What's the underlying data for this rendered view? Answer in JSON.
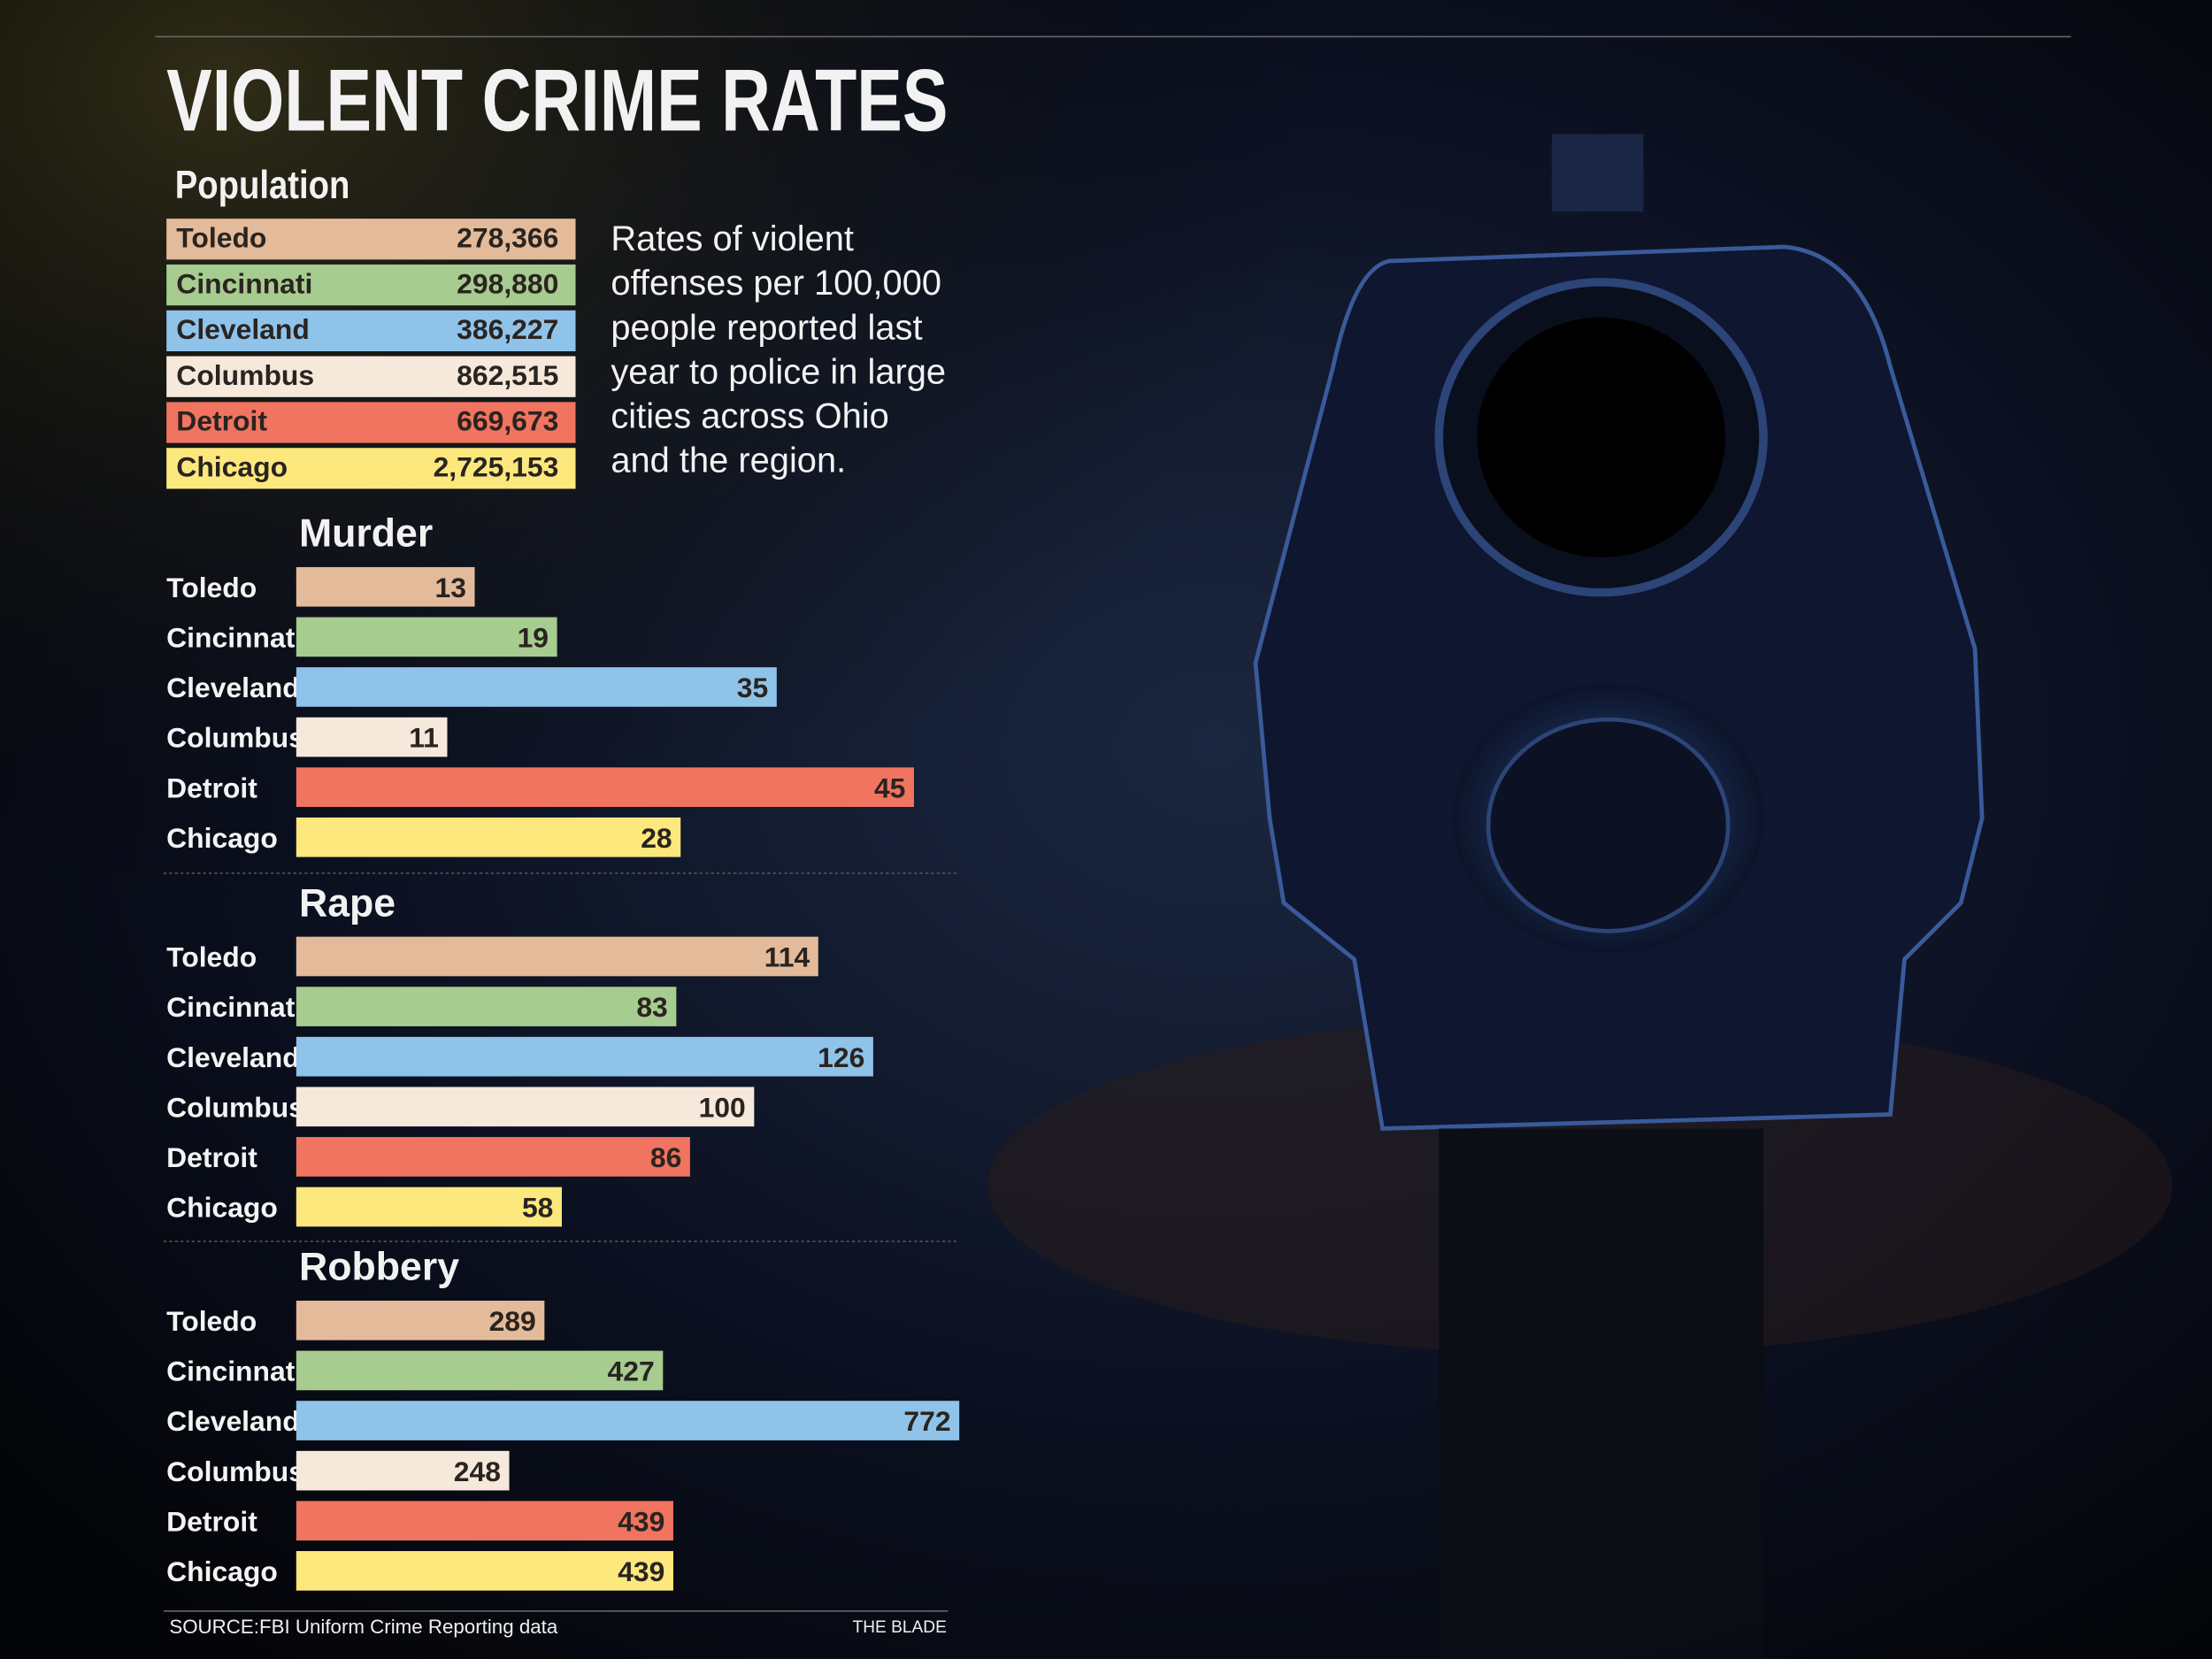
{
  "title": "VIOLENT CRIME RATES",
  "population": {
    "heading": "Population",
    "rows": [
      [
        "Toledo",
        "278,366"
      ],
      [
        "Cincinnati",
        "298,880"
      ],
      [
        "Cleveland",
        "386,227"
      ],
      [
        "Columbus",
        "862,515"
      ],
      [
        "Detroit",
        "669,673"
      ],
      [
        "Chicago",
        "2,725,153"
      ]
    ],
    "colors": [
      "#e3bb9b",
      "#a6cc8f",
      "#8fc3ea",
      "#f6e8da",
      "#f07460",
      "#fde87d"
    ]
  },
  "description": [
    "Rates of violent",
    "offenses per 100,000",
    "people reported last",
    "year to police in large",
    "cities across Ohio",
    "and the region."
  ],
  "chart_data": [
    {
      "type": "bar",
      "orientation": "horizontal",
      "title": "Murder",
      "categories": [
        "Toledo",
        "Cincinnati",
        "Cleveland",
        "Columbus",
        "Detroit",
        "Chicago"
      ],
      "values": [
        13,
        19,
        35,
        11,
        45,
        28
      ],
      "colors": [
        "#e3bb9b",
        "#a6cc8f",
        "#8fc3ea",
        "#f6e8da",
        "#f07460",
        "#fde87d"
      ],
      "xlim": [
        0,
        48.3
      ]
    },
    {
      "type": "bar",
      "orientation": "horizontal",
      "title": "Rape",
      "categories": [
        "Toledo",
        "Cincinnati",
        "Cleveland",
        "Columbus",
        "Detroit",
        "Chicago"
      ],
      "values": [
        114,
        83,
        126,
        100,
        86,
        58
      ],
      "colors": [
        "#e3bb9b",
        "#a6cc8f",
        "#8fc3ea",
        "#f6e8da",
        "#f07460",
        "#fde87d"
      ],
      "xlim": [
        0,
        144.8
      ]
    },
    {
      "type": "bar",
      "orientation": "horizontal",
      "title": "Robbery",
      "categories": [
        "Toledo",
        "Cincinnati",
        "Cleveland",
        "Columbus",
        "Detroit",
        "Chicago"
      ],
      "values": [
        289,
        427,
        772,
        248,
        439,
        439
      ],
      "colors": [
        "#e3bb9b",
        "#a6cc8f",
        "#8fc3ea",
        "#f6e8da",
        "#f07460",
        "#fde87d"
      ],
      "xlim": [
        0,
        772
      ]
    }
  ],
  "source": "SOURCE:FBI Uniform Crime Reporting data",
  "credit": "THE BLADE"
}
